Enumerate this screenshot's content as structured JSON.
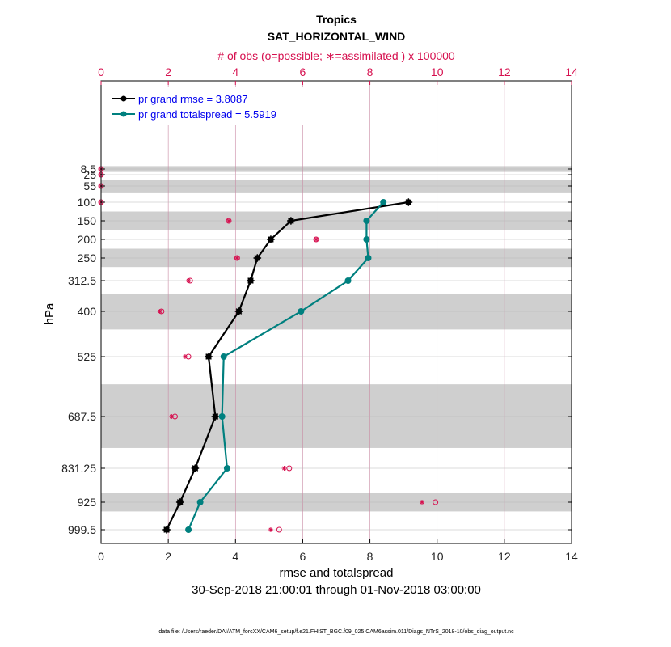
{
  "chart_data": {
    "type": "line",
    "title": "Tropics",
    "subtitle": "SAT_HORIZONTAL_WIND",
    "top_axis_label": "# of obs (o=possible; ∗=assimilated ) x 100000",
    "xlabel": "rmse and totalspread",
    "ylabel": "hPa",
    "date_range": "30-Sep-2018 21:00:01 through 01-Nov-2018 03:00:00",
    "footer": "data file: /Users/raeder/DAI/ATM_forcXX/CAM6_setup/f.e21.FHIST_BGC.f09_025.CAM6assim.011/Diags_NTrS_2018-10/obs_diag_output.nc",
    "xlim": [
      0,
      14
    ],
    "xticks": [
      "0",
      "2",
      "4",
      "6",
      "8",
      "10",
      "12",
      "14"
    ],
    "top_xlim": [
      0,
      14
    ],
    "top_xticks": [
      "0",
      "2",
      "4",
      "6",
      "8",
      "10",
      "12",
      "14"
    ],
    "levels": [
      8.5,
      25,
      55,
      100,
      150,
      200,
      250,
      312.5,
      400,
      525,
      687.5,
      831.25,
      925,
      999.5
    ],
    "level_labels": [
      "8.5",
      "25",
      "55",
      "100",
      "150",
      "200",
      "250",
      "312.5",
      "400",
      "525",
      "687.5",
      "831.25",
      "925",
      "999.5"
    ],
    "shaded_bands_hpa": [
      [
        0,
        17
      ],
      [
        40,
        75
      ],
      [
        125,
        175
      ],
      [
        225,
        275
      ],
      [
        350,
        450
      ],
      [
        600,
        775
      ],
      [
        900,
        950
      ]
    ],
    "series": [
      {
        "name": "pr grand rmse = 3.8087",
        "color": "#000000",
        "marker": "star",
        "points": [
          {
            "level": 100,
            "value": 9.15
          },
          {
            "level": 150,
            "value": 5.65
          },
          {
            "level": 200,
            "value": 5.05
          },
          {
            "level": 250,
            "value": 4.65
          },
          {
            "level": 312.5,
            "value": 4.45
          },
          {
            "level": 400,
            "value": 4.1
          },
          {
            "level": 525,
            "value": 3.2
          },
          {
            "level": 687.5,
            "value": 3.4
          },
          {
            "level": 831.25,
            "value": 2.8
          },
          {
            "level": 925,
            "value": 2.35
          },
          {
            "level": 999.5,
            "value": 1.95
          }
        ]
      },
      {
        "name": "pr grand totalspread = 5.5919",
        "color": "#00807f",
        "marker": "circle",
        "points": [
          {
            "level": 100,
            "value": 8.4
          },
          {
            "level": 150,
            "value": 7.9
          },
          {
            "level": 200,
            "value": 7.9
          },
          {
            "level": 250,
            "value": 7.95
          },
          {
            "level": 312.5,
            "value": 7.35
          },
          {
            "level": 400,
            "value": 5.95
          },
          {
            "level": 525,
            "value": 3.65
          },
          {
            "level": 687.5,
            "value": 3.6
          },
          {
            "level": 831.25,
            "value": 3.75
          },
          {
            "level": 925,
            "value": 2.95
          },
          {
            "level": 999.5,
            "value": 2.6
          }
        ]
      }
    ],
    "obs_counts": [
      {
        "level": 8.5,
        "possible": 0.0,
        "assimilated": 0.0
      },
      {
        "level": 25,
        "possible": 0.0,
        "assimilated": 0.0
      },
      {
        "level": 55,
        "possible": 0.0,
        "assimilated": 0.0
      },
      {
        "level": 100,
        "possible": 0.0,
        "assimilated": 0.0
      },
      {
        "level": 150,
        "possible": 3.8,
        "assimilated": 3.8
      },
      {
        "level": 200,
        "possible": 6.4,
        "assimilated": 6.4
      },
      {
        "level": 250,
        "possible": 4.05,
        "assimilated": 4.05
      },
      {
        "level": 312.5,
        "possible": 2.65,
        "assimilated": 2.6
      },
      {
        "level": 400,
        "possible": 1.8,
        "assimilated": 1.75
      },
      {
        "level": 525,
        "possible": 2.6,
        "assimilated": 2.5
      },
      {
        "level": 687.5,
        "possible": 2.2,
        "assimilated": 2.1
      },
      {
        "level": 831.25,
        "possible": 5.6,
        "assimilated": 5.45
      },
      {
        "level": 925,
        "possible": 9.95,
        "assimilated": 9.55
      },
      {
        "level": 999.5,
        "possible": 5.3,
        "assimilated": 5.05
      }
    ]
  }
}
